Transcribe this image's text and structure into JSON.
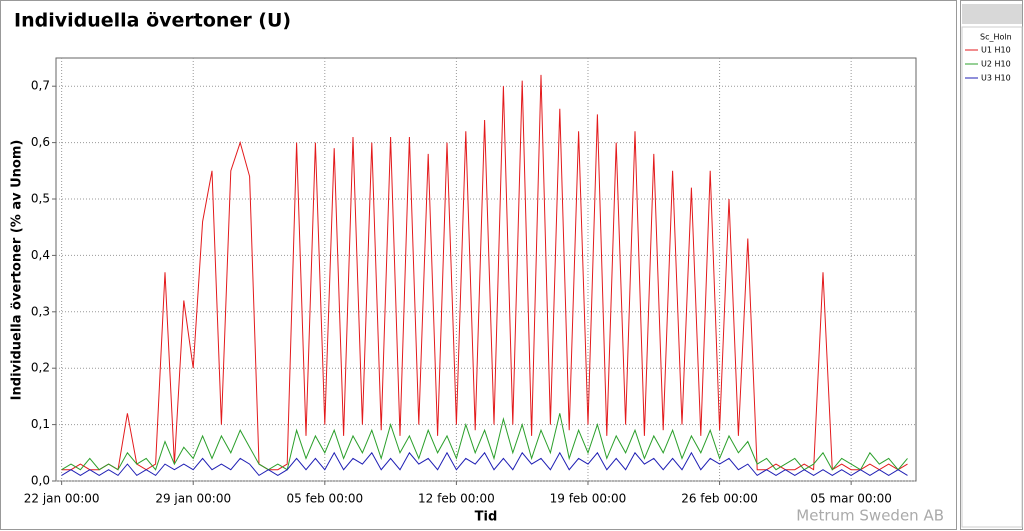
{
  "chart_data": {
    "type": "line",
    "title": "Individuella övertoner (U)",
    "y_label": "Individuella övertoner (% av Unom)",
    "x_label": "Tid",
    "watermark": "Metrum Sweden AB",
    "legend_title": "Sc_Holn",
    "grid": true,
    "xlim": [
      -0.3,
      45.45
    ],
    "xticks": [
      {
        "value": 0,
        "label": "22 jan 00:00"
      },
      {
        "value": 7,
        "label": "29 jan 00:00"
      },
      {
        "value": 14,
        "label": "05 feb 00:00"
      },
      {
        "value": 21,
        "label": "12 feb 00:00"
      },
      {
        "value": 28,
        "label": "19 feb 00:00"
      },
      {
        "value": 35,
        "label": "26 feb 00:00"
      },
      {
        "value": 42,
        "label": "05 mar 00:00"
      }
    ],
    "ylim": [
      0,
      0.75
    ],
    "yticks": [
      {
        "value": 0,
        "label": "0,0"
      },
      {
        "value": 0.1,
        "label": "0,1"
      },
      {
        "value": 0.2,
        "label": "0,2"
      },
      {
        "value": 0.3,
        "label": "0,3"
      },
      {
        "value": 0.4,
        "label": "0,4"
      },
      {
        "value": 0.5,
        "label": "0,5"
      },
      {
        "value": 0.6,
        "label": "0,6"
      },
      {
        "value": 0.7,
        "label": "0,7"
      }
    ],
    "x": [
      0,
      0.5,
      1,
      1.5,
      2,
      2.5,
      3,
      3.5,
      4,
      4.5,
      5,
      5.5,
      6,
      6.5,
      7,
      7.5,
      8,
      8.5,
      9,
      9.5,
      10,
      10.5,
      11,
      11.5,
      12,
      12.5,
      13,
      13.5,
      14,
      14.5,
      15,
      15.5,
      16,
      16.5,
      17,
      17.5,
      18,
      18.5,
      19,
      19.5,
      20,
      20.5,
      21,
      21.5,
      22,
      22.5,
      23,
      23.5,
      24,
      24.5,
      25,
      25.5,
      26,
      26.5,
      27,
      27.5,
      28,
      28.5,
      29,
      29.5,
      30,
      30.5,
      31,
      31.5,
      32,
      32.5,
      33,
      33.5,
      34,
      34.5,
      35,
      35.5,
      36,
      36.5,
      37,
      37.5,
      38,
      38.5,
      39,
      39.5,
      40,
      40.5,
      41,
      41.5,
      42,
      42.5,
      43,
      43.5,
      44,
      44.5,
      45
    ],
    "series": [
      {
        "name": "U1 H10",
        "color": "#e31a1c",
        "values": [
          0.02,
          0.02,
          0.03,
          0.02,
          0.02,
          0.03,
          0.02,
          0.12,
          0.03,
          0.02,
          0.03,
          0.37,
          0.03,
          0.32,
          0.2,
          0.46,
          0.55,
          0.1,
          0.55,
          0.6,
          0.54,
          0.03,
          0.02,
          0.02,
          0.03,
          0.6,
          0.08,
          0.6,
          0.1,
          0.59,
          0.08,
          0.61,
          0.1,
          0.6,
          0.09,
          0.61,
          0.08,
          0.61,
          0.1,
          0.58,
          0.08,
          0.6,
          0.1,
          0.62,
          0.09,
          0.64,
          0.1,
          0.7,
          0.1,
          0.71,
          0.08,
          0.72,
          0.1,
          0.66,
          0.09,
          0.62,
          0.1,
          0.65,
          0.08,
          0.6,
          0.1,
          0.62,
          0.08,
          0.58,
          0.09,
          0.55,
          0.1,
          0.52,
          0.08,
          0.55,
          0.09,
          0.5,
          0.08,
          0.43,
          0.02,
          0.02,
          0.03,
          0.02,
          0.02,
          0.03,
          0.02,
          0.37,
          0.02,
          0.03,
          0.02,
          0.02,
          0.03,
          0.02,
          0.03,
          0.02,
          0.03
        ]
      },
      {
        "name": "U2 H10",
        "color": "#2ca02c",
        "values": [
          0.02,
          0.03,
          0.02,
          0.04,
          0.02,
          0.03,
          0.02,
          0.05,
          0.03,
          0.04,
          0.02,
          0.07,
          0.03,
          0.06,
          0.04,
          0.08,
          0.04,
          0.08,
          0.05,
          0.09,
          0.06,
          0.03,
          0.02,
          0.03,
          0.02,
          0.09,
          0.04,
          0.08,
          0.05,
          0.09,
          0.04,
          0.08,
          0.05,
          0.09,
          0.04,
          0.1,
          0.05,
          0.08,
          0.04,
          0.09,
          0.05,
          0.08,
          0.04,
          0.1,
          0.05,
          0.09,
          0.04,
          0.11,
          0.05,
          0.1,
          0.04,
          0.09,
          0.05,
          0.12,
          0.04,
          0.09,
          0.05,
          0.1,
          0.04,
          0.08,
          0.05,
          0.09,
          0.04,
          0.08,
          0.05,
          0.09,
          0.04,
          0.08,
          0.05,
          0.09,
          0.04,
          0.08,
          0.05,
          0.07,
          0.03,
          0.04,
          0.02,
          0.03,
          0.04,
          0.02,
          0.03,
          0.05,
          0.02,
          0.04,
          0.03,
          0.02,
          0.05,
          0.03,
          0.04,
          0.02,
          0.04
        ]
      },
      {
        "name": "U3 H10",
        "color": "#1f1fb4",
        "values": [
          0.01,
          0.02,
          0.01,
          0.02,
          0.01,
          0.02,
          0.01,
          0.03,
          0.01,
          0.02,
          0.01,
          0.03,
          0.02,
          0.03,
          0.02,
          0.04,
          0.02,
          0.03,
          0.02,
          0.04,
          0.03,
          0.01,
          0.02,
          0.01,
          0.02,
          0.04,
          0.02,
          0.04,
          0.02,
          0.05,
          0.02,
          0.04,
          0.03,
          0.05,
          0.02,
          0.04,
          0.02,
          0.05,
          0.03,
          0.04,
          0.02,
          0.05,
          0.02,
          0.04,
          0.03,
          0.05,
          0.02,
          0.04,
          0.02,
          0.05,
          0.03,
          0.04,
          0.02,
          0.05,
          0.02,
          0.04,
          0.03,
          0.05,
          0.02,
          0.04,
          0.02,
          0.05,
          0.03,
          0.04,
          0.02,
          0.04,
          0.02,
          0.05,
          0.02,
          0.04,
          0.03,
          0.04,
          0.02,
          0.03,
          0.01,
          0.02,
          0.01,
          0.02,
          0.01,
          0.02,
          0.01,
          0.02,
          0.01,
          0.02,
          0.01,
          0.02,
          0.01,
          0.02,
          0.01,
          0.02,
          0.01
        ]
      }
    ]
  }
}
